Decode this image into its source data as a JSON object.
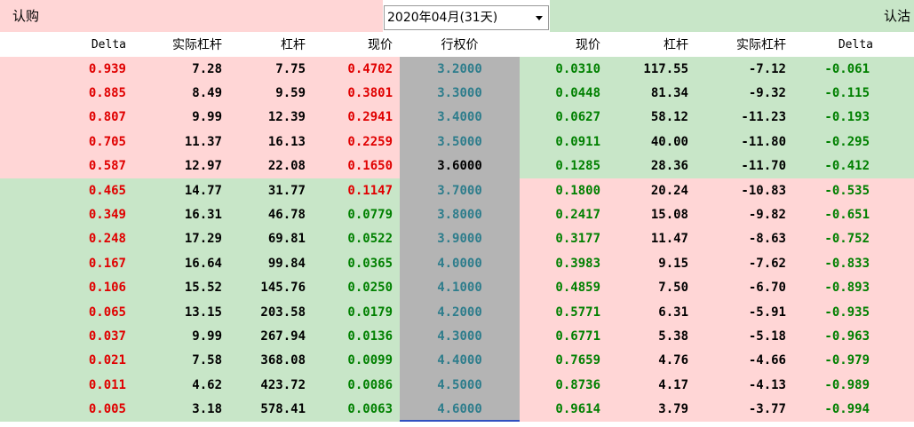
{
  "header": {
    "call_label": "认购",
    "month_select": "2020年04月(31天)",
    "put_label": "认沽"
  },
  "table": {
    "columns": [
      "Delta",
      "实际杠杆",
      "杠杆",
      "现价",
      "行权价",
      "现价",
      "杠杆",
      "实际杠杆",
      "Delta"
    ],
    "rows": [
      [
        "0.939",
        "7.28",
        "7.75",
        "0.4702",
        "3.2000",
        "0.0310",
        "117.55",
        "-7.12",
        "-0.061"
      ],
      [
        "0.885",
        "8.49",
        "9.59",
        "0.3801",
        "3.3000",
        "0.0448",
        "81.34",
        "-9.32",
        "-0.115"
      ],
      [
        "0.807",
        "9.99",
        "12.39",
        "0.2941",
        "3.4000",
        "0.0627",
        "58.12",
        "-11.23",
        "-0.193"
      ],
      [
        "0.705",
        "11.37",
        "16.13",
        "0.2259",
        "3.5000",
        "0.0911",
        "40.00",
        "-11.80",
        "-0.295"
      ],
      [
        "0.587",
        "12.97",
        "22.08",
        "0.1650",
        "3.6000",
        "0.1285",
        "28.36",
        "-11.70",
        "-0.412"
      ],
      [
        "0.465",
        "14.77",
        "31.77",
        "0.1147",
        "3.7000",
        "0.1800",
        "20.24",
        "-10.83",
        "-0.535"
      ],
      [
        "0.349",
        "16.31",
        "46.78",
        "0.0779",
        "3.8000",
        "0.2417",
        "15.08",
        "-9.82",
        "-0.651"
      ],
      [
        "0.248",
        "17.29",
        "69.81",
        "0.0522",
        "3.9000",
        "0.3177",
        "11.47",
        "-8.63",
        "-0.752"
      ],
      [
        "0.167",
        "16.64",
        "99.84",
        "0.0365",
        "4.0000",
        "0.3983",
        "9.15",
        "-7.62",
        "-0.833"
      ],
      [
        "0.106",
        "15.52",
        "145.76",
        "0.0250",
        "4.1000",
        "0.4859",
        "7.50",
        "-6.70",
        "-0.893"
      ],
      [
        "0.065",
        "13.15",
        "203.58",
        "0.0179",
        "4.2000",
        "0.5771",
        "6.31",
        "-5.91",
        "-0.935"
      ],
      [
        "0.037",
        "9.99",
        "267.94",
        "0.0136",
        "4.3000",
        "0.6771",
        "5.38",
        "-5.18",
        "-0.963"
      ],
      [
        "0.021",
        "7.58",
        "368.08",
        "0.0099",
        "4.4000",
        "0.7659",
        "4.76",
        "-4.66",
        "-0.979"
      ],
      [
        "0.011",
        "4.62",
        "423.72",
        "0.0086",
        "4.5000",
        "0.8736",
        "4.17",
        "-4.13",
        "-0.989"
      ],
      [
        "0.005",
        "3.18",
        "578.41",
        "0.0063",
        "4.6000",
        "0.9614",
        "3.79",
        "-3.77",
        "-0.994"
      ]
    ]
  }
}
